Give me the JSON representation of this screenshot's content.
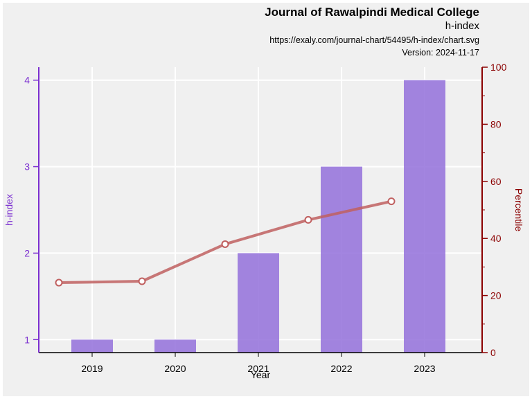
{
  "header": {
    "title": "Journal of Rawalpindi Medical College",
    "subtitle": "h-index",
    "url": "https://exaly.com/journal-chart/54495/h-index/chart.svg",
    "version": "Version: 2024-11-17"
  },
  "chart_data": {
    "type": "bar",
    "categories": [
      "2019",
      "2020",
      "2021",
      "2022",
      "2023"
    ],
    "series": [
      {
        "values": [
          1,
          1,
          2,
          3,
          4
        ],
        "axis": "left",
        "type": "bar",
        "color": "#9370db"
      },
      {
        "values": [
          24.5,
          25,
          38,
          46.5,
          53
        ],
        "axis": "right",
        "type": "line",
        "color": "#c06060"
      }
    ],
    "xlabel": "Year",
    "ylabel": "h-index",
    "y2label": "Percentile",
    "ylim": [
      0.85,
      4.15
    ],
    "y2lim": [
      0,
      100
    ],
    "yticks": [
      1,
      2,
      3,
      4
    ],
    "y2ticks": [
      0,
      20,
      40,
      60,
      80,
      100
    ],
    "grid": true,
    "colors": {
      "left_axis": "#7b2fd0",
      "right_axis": "#8b0000",
      "grid": "#ffffff"
    }
  }
}
